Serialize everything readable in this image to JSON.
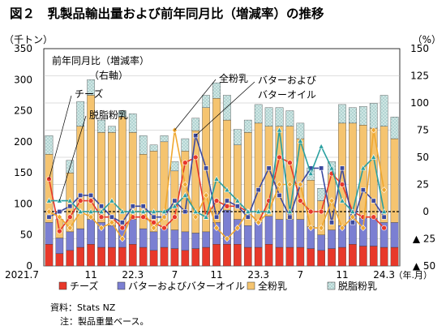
{
  "chart_data": {
    "type": "bar",
    "title": "図２　乳製品輸出量および前年同月比（増減率）の推移",
    "left_unit": "（千トン）",
    "right_unit": "（%）",
    "inner_title": "前年同月比（増減率）",
    "inner_axis_note": "（右軸）",
    "x_unit": "（年.月）",
    "left_axis": {
      "min": 0,
      "max": 350,
      "ticks": [
        0,
        50,
        100,
        150,
        200,
        250,
        300,
        350
      ]
    },
    "right_axis": {
      "min": -50,
      "max": 150,
      "ticks": [
        150,
        125,
        100,
        75,
        50,
        25,
        0,
        -25,
        -50
      ],
      "tick_labels": [
        "150",
        "125",
        "100",
        "75",
        "50",
        "25",
        "0",
        "▲ 25",
        "▲ 50"
      ]
    },
    "x_tick_labels": [
      {
        "index": 0,
        "label": "2021.7"
      },
      {
        "index": 4,
        "label": "11"
      },
      {
        "index": 8,
        "label": "22.3"
      },
      {
        "index": 12,
        "label": "7"
      },
      {
        "index": 16,
        "label": "11"
      },
      {
        "index": 20,
        "label": "23.3"
      },
      {
        "index": 24,
        "label": "7"
      },
      {
        "index": 28,
        "label": "11"
      },
      {
        "index": 32,
        "label": "24.3"
      }
    ],
    "bar_series": [
      {
        "name": "チーズ",
        "color": "#e8382a",
        "values": [
          35,
          20,
          25,
          30,
          35,
          30,
          30,
          30,
          35,
          30,
          25,
          30,
          28,
          25,
          28,
          30,
          35,
          35,
          35,
          30,
          30,
          35,
          30,
          30,
          30,
          28,
          25,
          28,
          30,
          35,
          32,
          32,
          30,
          30
        ]
      },
      {
        "name": "バターおよびバターオイル",
        "color": "#7b7fd2",
        "values": [
          35,
          25,
          30,
          30,
          40,
          40,
          35,
          35,
          40,
          30,
          30,
          30,
          30,
          30,
          25,
          25,
          35,
          55,
          40,
          35,
          40,
          45,
          45,
          45,
          45,
          35,
          25,
          30,
          35,
          45,
          45,
          45,
          40,
          40
        ]
      },
      {
        "name": "全粉乳",
        "color": "#f5c470",
        "values": [
          110,
          30,
          95,
          165,
          200,
          145,
          150,
          175,
          140,
          120,
          130,
          140,
          95,
          130,
          165,
          200,
          200,
          145,
          120,
          150,
          160,
          145,
          150,
          150,
          130,
          75,
          55,
          90,
          165,
          150,
          150,
          145,
          155,
          135
        ]
      },
      {
        "name": "脱脂粉乳",
        "color": "#cfe6e4",
        "values": [
          30,
          0,
          20,
          40,
          25,
          20,
          10,
          10,
          30,
          30,
          10,
          10,
          15,
          20,
          20,
          20,
          25,
          40,
          25,
          20,
          30,
          30,
          30,
          25,
          25,
          20,
          20,
          20,
          30,
          25,
          30,
          40,
          50,
          35
        ]
      }
    ],
    "line_series": [
      {
        "name": "チーズ",
        "color": "#e8382a",
        "marker": "circle",
        "values": [
          30,
          -18,
          -5,
          10,
          10,
          -5,
          -5,
          -15,
          -5,
          -5,
          -10,
          -15,
          -5,
          45,
          50,
          -5,
          10,
          5,
          5,
          0,
          -10,
          10,
          50,
          45,
          10,
          0,
          0,
          35,
          25,
          0,
          -5,
          -5,
          -15
        ]
      },
      {
        "name": "バターおよびバターオイル",
        "color": "#3c4aa0",
        "marker": "square",
        "values": [
          -5,
          0,
          5,
          15,
          15,
          5,
          -5,
          -10,
          5,
          5,
          -5,
          -5,
          10,
          0,
          70,
          40,
          -5,
          10,
          5,
          -5,
          20,
          40,
          15,
          -5,
          25,
          40,
          40,
          -10,
          40,
          -10,
          20,
          10,
          -5
        ]
      },
      {
        "name": "全粉乳",
        "color": "#f0a830",
        "marker": "diamond",
        "values": [
          0,
          -5,
          -15,
          0,
          -5,
          -15,
          -10,
          -25,
          0,
          0,
          -15,
          -5,
          75,
          25,
          -5,
          15,
          -15,
          -25,
          -15,
          0,
          -10,
          0,
          25,
          25,
          25,
          -15,
          -15,
          10,
          -15,
          -5,
          -15,
          75,
          20
        ]
      },
      {
        "name": "脱脂粉乳",
        "color": "#2aa0a0",
        "marker": "triangle",
        "values": [
          10,
          10,
          10,
          0,
          0,
          0,
          10,
          0,
          0,
          0,
          0,
          0,
          5,
          15,
          0,
          -5,
          30,
          20,
          10,
          0,
          0,
          0,
          75,
          0,
          65,
          35,
          60,
          40,
          10,
          0,
          40,
          50,
          0
        ]
      }
    ],
    "annotations": [
      {
        "text": "チーズ",
        "series": "チーズ"
      },
      {
        "text": "脱脂粉乳",
        "series": "脱脂粉乳"
      },
      {
        "text": "全粉乳",
        "series": "全粉乳"
      },
      {
        "text": "バターおよび",
        "series": "バターおよびバターオイル"
      },
      {
        "text": "バターオイル",
        "series": "バターおよびバターオイル"
      }
    ],
    "legend": {
      "placement": "bottom"
    },
    "source": "資料：Stats NZ",
    "note": "注：製品重量ベース。"
  }
}
